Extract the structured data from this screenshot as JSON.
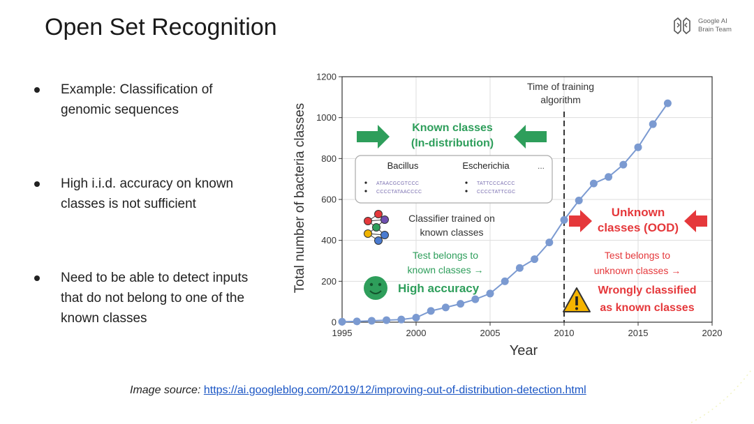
{
  "slide": {
    "title": "Open Set Recognition",
    "logo": {
      "line1": "Google AI",
      "line2": "Brain Team",
      "icon": "google-ai-brain-logo-icon"
    },
    "bullets": [
      {
        "text": "Example: Classification of genomic sequences"
      },
      {
        "text": "High i.i.d. accuracy on known classes is not sufficient"
      },
      {
        "text": "Need to be able to detect inputs that do not belong to one of the known classes"
      }
    ],
    "source": {
      "label": "Image source:",
      "link": "https://ai.googleblog.com/2019/12/improving-out-of-distribution-detection.html"
    }
  },
  "chart_data": {
    "type": "line",
    "xlabel": "Year",
    "ylabel": "Total number of bacteria classes",
    "xlim": [
      1995,
      2020
    ],
    "ylim": [
      0,
      1200
    ],
    "xticks": [
      1995,
      2000,
      2005,
      2010,
      2015,
      2020
    ],
    "yticks": [
      0,
      200,
      400,
      600,
      800,
      1000,
      1200
    ],
    "grid": true,
    "series_color": "#7b9ad1",
    "x": [
      1995,
      1996,
      1997,
      1998,
      1999,
      2000,
      2001,
      2002,
      2003,
      2004,
      2005,
      2006,
      2007,
      2008,
      2009,
      2010,
      2011,
      2012,
      2013,
      2014,
      2015,
      2016,
      2017
    ],
    "values": [
      2,
      4,
      7,
      10,
      13,
      22,
      55,
      72,
      90,
      112,
      140,
      200,
      265,
      308,
      390,
      500,
      595,
      678,
      710,
      770,
      855,
      968,
      1070
    ],
    "annotations": {
      "training_time": {
        "x": 2010,
        "label": "Time of training algorithm"
      },
      "known": {
        "heading": "Known classes (In-distribution)",
        "color": "#2e9e5b",
        "class_names": [
          "Bacillus",
          "Escherichia",
          "..."
        ],
        "sequences": [
          "ATAACGCGTCCC",
          "CCCCTATAACCCC",
          "TATTCCCACCC",
          "CCCCTATTCGC"
        ],
        "classifier_label": "Classifier trained on known classes",
        "test_text": "Test belongs to known classes →",
        "result": "High accuracy"
      },
      "unknown": {
        "heading": "Unknown classes (OOD)",
        "color": "#e5383b",
        "test_text": "Test belongs to unknown classes →",
        "result": "Wrongly classified as known classes"
      }
    }
  }
}
